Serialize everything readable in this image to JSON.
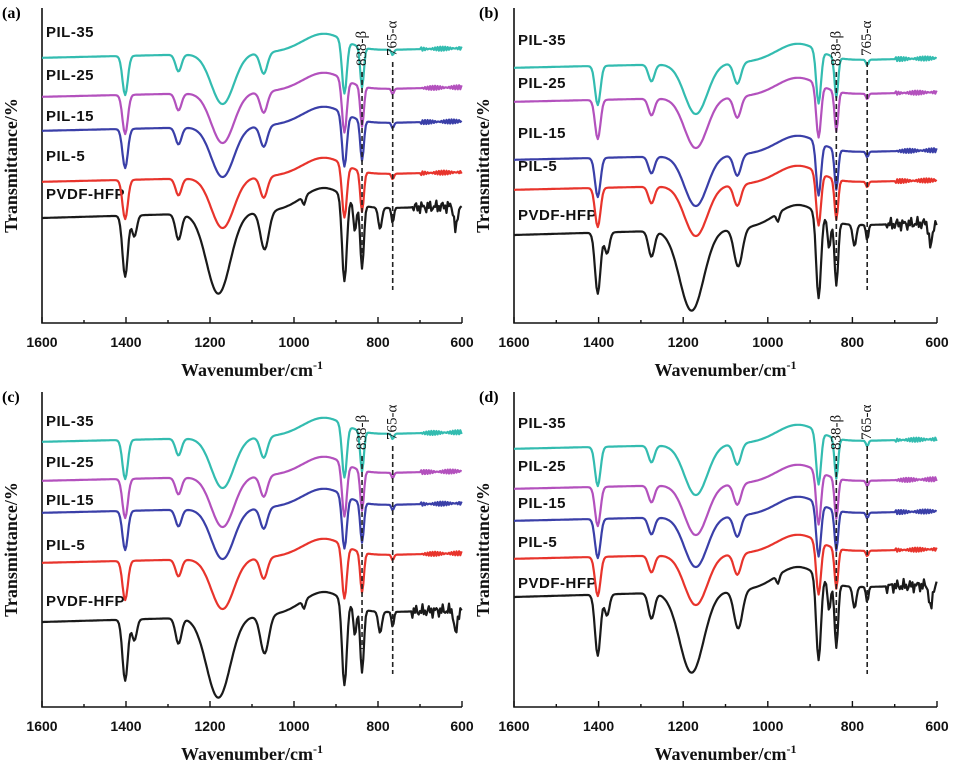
{
  "chart_data": [
    {
      "type": "line",
      "panel": "(a)",
      "xlabel": "Wavenumber/cm",
      "xlabel_sup": "-1",
      "ylabel": "Transmittance/%",
      "xlim": [
        1600,
        600
      ],
      "x_reversed": true,
      "x_ticks": [
        1600,
        1400,
        1200,
        1000,
        800,
        600
      ],
      "y_ticks": false,
      "grid": false,
      "annotations": [
        {
          "text": "838-β",
          "x": 838
        },
        {
          "text": "765-α",
          "x": 765
        }
      ],
      "series": [
        {
          "name": "PVDF-HFP",
          "color": "#1a1a1a",
          "offset": 0
        },
        {
          "name": "PIL-5",
          "color": "#e8342c",
          "offset": 1
        },
        {
          "name": "PIL-15",
          "color": "#3a3fa8",
          "offset": 2
        },
        {
          "name": "PIL-25",
          "color": "#b351bd",
          "offset": 3
        },
        {
          "name": "PIL-35",
          "color": "#33bcb0",
          "offset": 4
        }
      ]
    },
    {
      "type": "line",
      "panel": "(b)",
      "xlabel": "Wavenumber/cm",
      "xlabel_sup": "-1",
      "ylabel": "Transmittance/%",
      "xlim": [
        1600,
        600
      ],
      "x_reversed": true,
      "x_ticks": [
        1600,
        1400,
        1200,
        1000,
        800,
        600
      ],
      "y_ticks": false,
      "grid": false,
      "annotations": [
        {
          "text": "838-β",
          "x": 838
        },
        {
          "text": "765-α",
          "x": 765
        }
      ],
      "series": [
        {
          "name": "PVDF-HFP",
          "color": "#1a1a1a",
          "offset": 0
        },
        {
          "name": "PIL-5",
          "color": "#e8342c",
          "offset": 1
        },
        {
          "name": "PIL-15",
          "color": "#3a3fa8",
          "offset": 2
        },
        {
          "name": "PIL-25",
          "color": "#b351bd",
          "offset": 3
        },
        {
          "name": "PIL-35",
          "color": "#33bcb0",
          "offset": 4
        }
      ]
    },
    {
      "type": "line",
      "panel": "(c)",
      "xlabel": "Wavenumber/cm",
      "xlabel_sup": "-1",
      "ylabel": "Transmittance/%",
      "xlim": [
        1600,
        600
      ],
      "x_reversed": true,
      "x_ticks": [
        1600,
        1400,
        1200,
        1000,
        800,
        600
      ],
      "y_ticks": false,
      "grid": false,
      "annotations": [
        {
          "text": "838-β",
          "x": 838
        },
        {
          "text": "765-α",
          "x": 765
        }
      ],
      "series": [
        {
          "name": "PVDF-HFP",
          "color": "#1a1a1a",
          "offset": 0
        },
        {
          "name": "PIL-5",
          "color": "#e8342c",
          "offset": 1
        },
        {
          "name": "PIL-15",
          "color": "#3a3fa8",
          "offset": 2
        },
        {
          "name": "PIL-25",
          "color": "#b351bd",
          "offset": 3
        },
        {
          "name": "PIL-35",
          "color": "#33bcb0",
          "offset": 4
        }
      ]
    },
    {
      "type": "line",
      "panel": "(d)",
      "xlabel": "Wavenumber/cm",
      "xlabel_sup": "-1",
      "ylabel": "Transmittance/%",
      "xlim": [
        1600,
        600
      ],
      "x_reversed": true,
      "x_ticks": [
        1600,
        1400,
        1200,
        1000,
        800,
        600
      ],
      "y_ticks": false,
      "grid": false,
      "annotations": [
        {
          "text": "838-β",
          "x": 838
        },
        {
          "text": "765-α",
          "x": 765
        }
      ],
      "series": [
        {
          "name": "PVDF-HFP",
          "color": "#1a1a1a",
          "offset": 0
        },
        {
          "name": "PIL-5",
          "color": "#e8342c",
          "offset": 1
        },
        {
          "name": "PIL-15",
          "color": "#3a3fa8",
          "offset": 2
        },
        {
          "name": "PIL-25",
          "color": "#b351bd",
          "offset": 3
        },
        {
          "name": "PIL-35",
          "color": "#33bcb0",
          "offset": 4
        }
      ]
    }
  ]
}
